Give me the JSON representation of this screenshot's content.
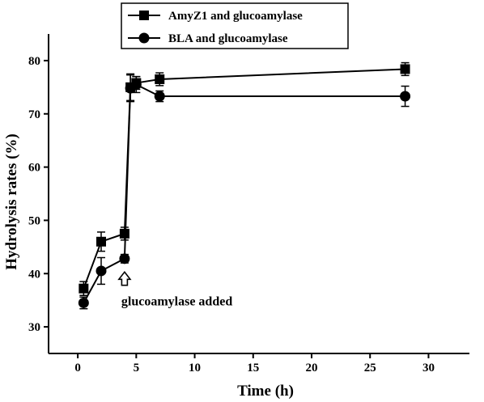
{
  "chart_data": {
    "type": "line",
    "title": "",
    "xlabel": "Time (h)",
    "ylabel": "Hydrolysis rates (%)",
    "xlim": [
      -2.5,
      33.5
    ],
    "ylim": [
      25,
      85
    ],
    "xticks": [
      0,
      5,
      10,
      15,
      20,
      25,
      30
    ],
    "yticks": [
      30,
      40,
      50,
      60,
      70,
      80
    ],
    "grid": false,
    "legend_position": "top-left",
    "series": [
      {
        "name": "AmyZ1 and glucoamylase",
        "marker": "square",
        "x": [
          0.5,
          2,
          4,
          4.5,
          5,
          7,
          28
        ],
        "y": [
          37.2,
          46.0,
          47.5,
          75.0,
          75.8,
          76.5,
          78.4
        ],
        "err": [
          1.3,
          1.8,
          1.2,
          2.5,
          1.2,
          1.2,
          1.2
        ]
      },
      {
        "name": "BLA and glucoamylase",
        "marker": "circle",
        "x": [
          0.5,
          2,
          4,
          4.5,
          5,
          7,
          28
        ],
        "y": [
          34.5,
          40.5,
          42.8,
          74.8,
          75.5,
          73.3,
          73.3
        ],
        "err": [
          1.1,
          2.5,
          0.8,
          2.5,
          1.5,
          1.0,
          1.9
        ]
      }
    ],
    "annotations": [
      {
        "text": "glucoamylase added",
        "arrow_x": 4,
        "arrow_y_top": 40.3,
        "arrow_y_bottom": 37.8
      }
    ]
  }
}
